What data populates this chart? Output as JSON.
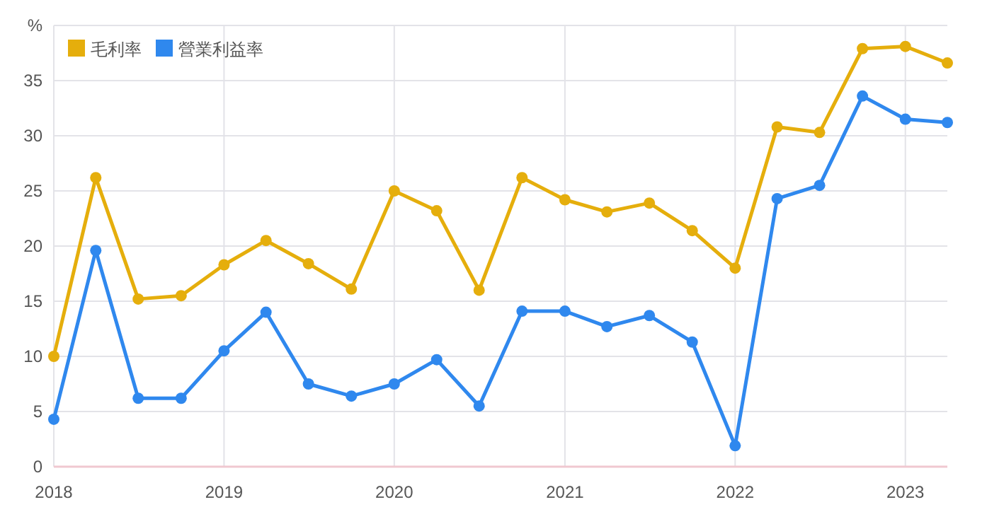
{
  "chart_data": {
    "type": "line",
    "ylabel": null,
    "x": [
      "2018-01",
      "2018-04",
      "2018-07",
      "2018-10",
      "2019-01",
      "2019-04",
      "2019-07",
      "2019-10",
      "2020-01",
      "2020-04",
      "2020-07",
      "2020-10",
      "2021-01",
      "2021-04",
      "2021-07",
      "2021-10",
      "2022-01",
      "2022-04",
      "2022-07",
      "2022-10",
      "2023-01",
      "2023-04"
    ],
    "series": [
      {
        "name": "毛利率",
        "color": "#e5ae0c",
        "values": [
          10,
          26.2,
          15.2,
          15.5,
          18.3,
          20.5,
          18.4,
          16.1,
          25,
          23.2,
          16,
          26.2,
          24.2,
          23.1,
          23.9,
          21.4,
          18,
          30.8,
          30.3,
          37.9,
          38.1,
          36.6
        ]
      },
      {
        "name": "營業利益率",
        "color": "#2f88ee",
        "values": [
          4.3,
          19.6,
          6.2,
          6.2,
          10.5,
          14,
          7.5,
          6.4,
          7.5,
          9.7,
          5.5,
          14.1,
          14.1,
          12.7,
          13.7,
          11.3,
          1.9,
          24.3,
          25.5,
          33.6,
          31.5,
          31.2
        ]
      }
    ],
    "xlim": [
      "2018-01",
      "2023-04"
    ],
    "xticks": [
      {
        "value": "2018-01",
        "label": "2018"
      },
      {
        "value": "2019-01",
        "label": "2019"
      },
      {
        "value": "2020-01",
        "label": "2020"
      },
      {
        "value": "2021-01",
        "label": "2021"
      },
      {
        "value": "2022-01",
        "label": "2022"
      },
      {
        "value": "2023-01",
        "label": "2023"
      }
    ],
    "ylim": [
      0,
      40
    ],
    "yticks": [
      0,
      5,
      10,
      15,
      20,
      25,
      30,
      35,
      {
        "value": 40,
        "label": "%"
      }
    ],
    "grid": true,
    "legend": "top left",
    "marker": "circle",
    "line_style": "solid"
  }
}
